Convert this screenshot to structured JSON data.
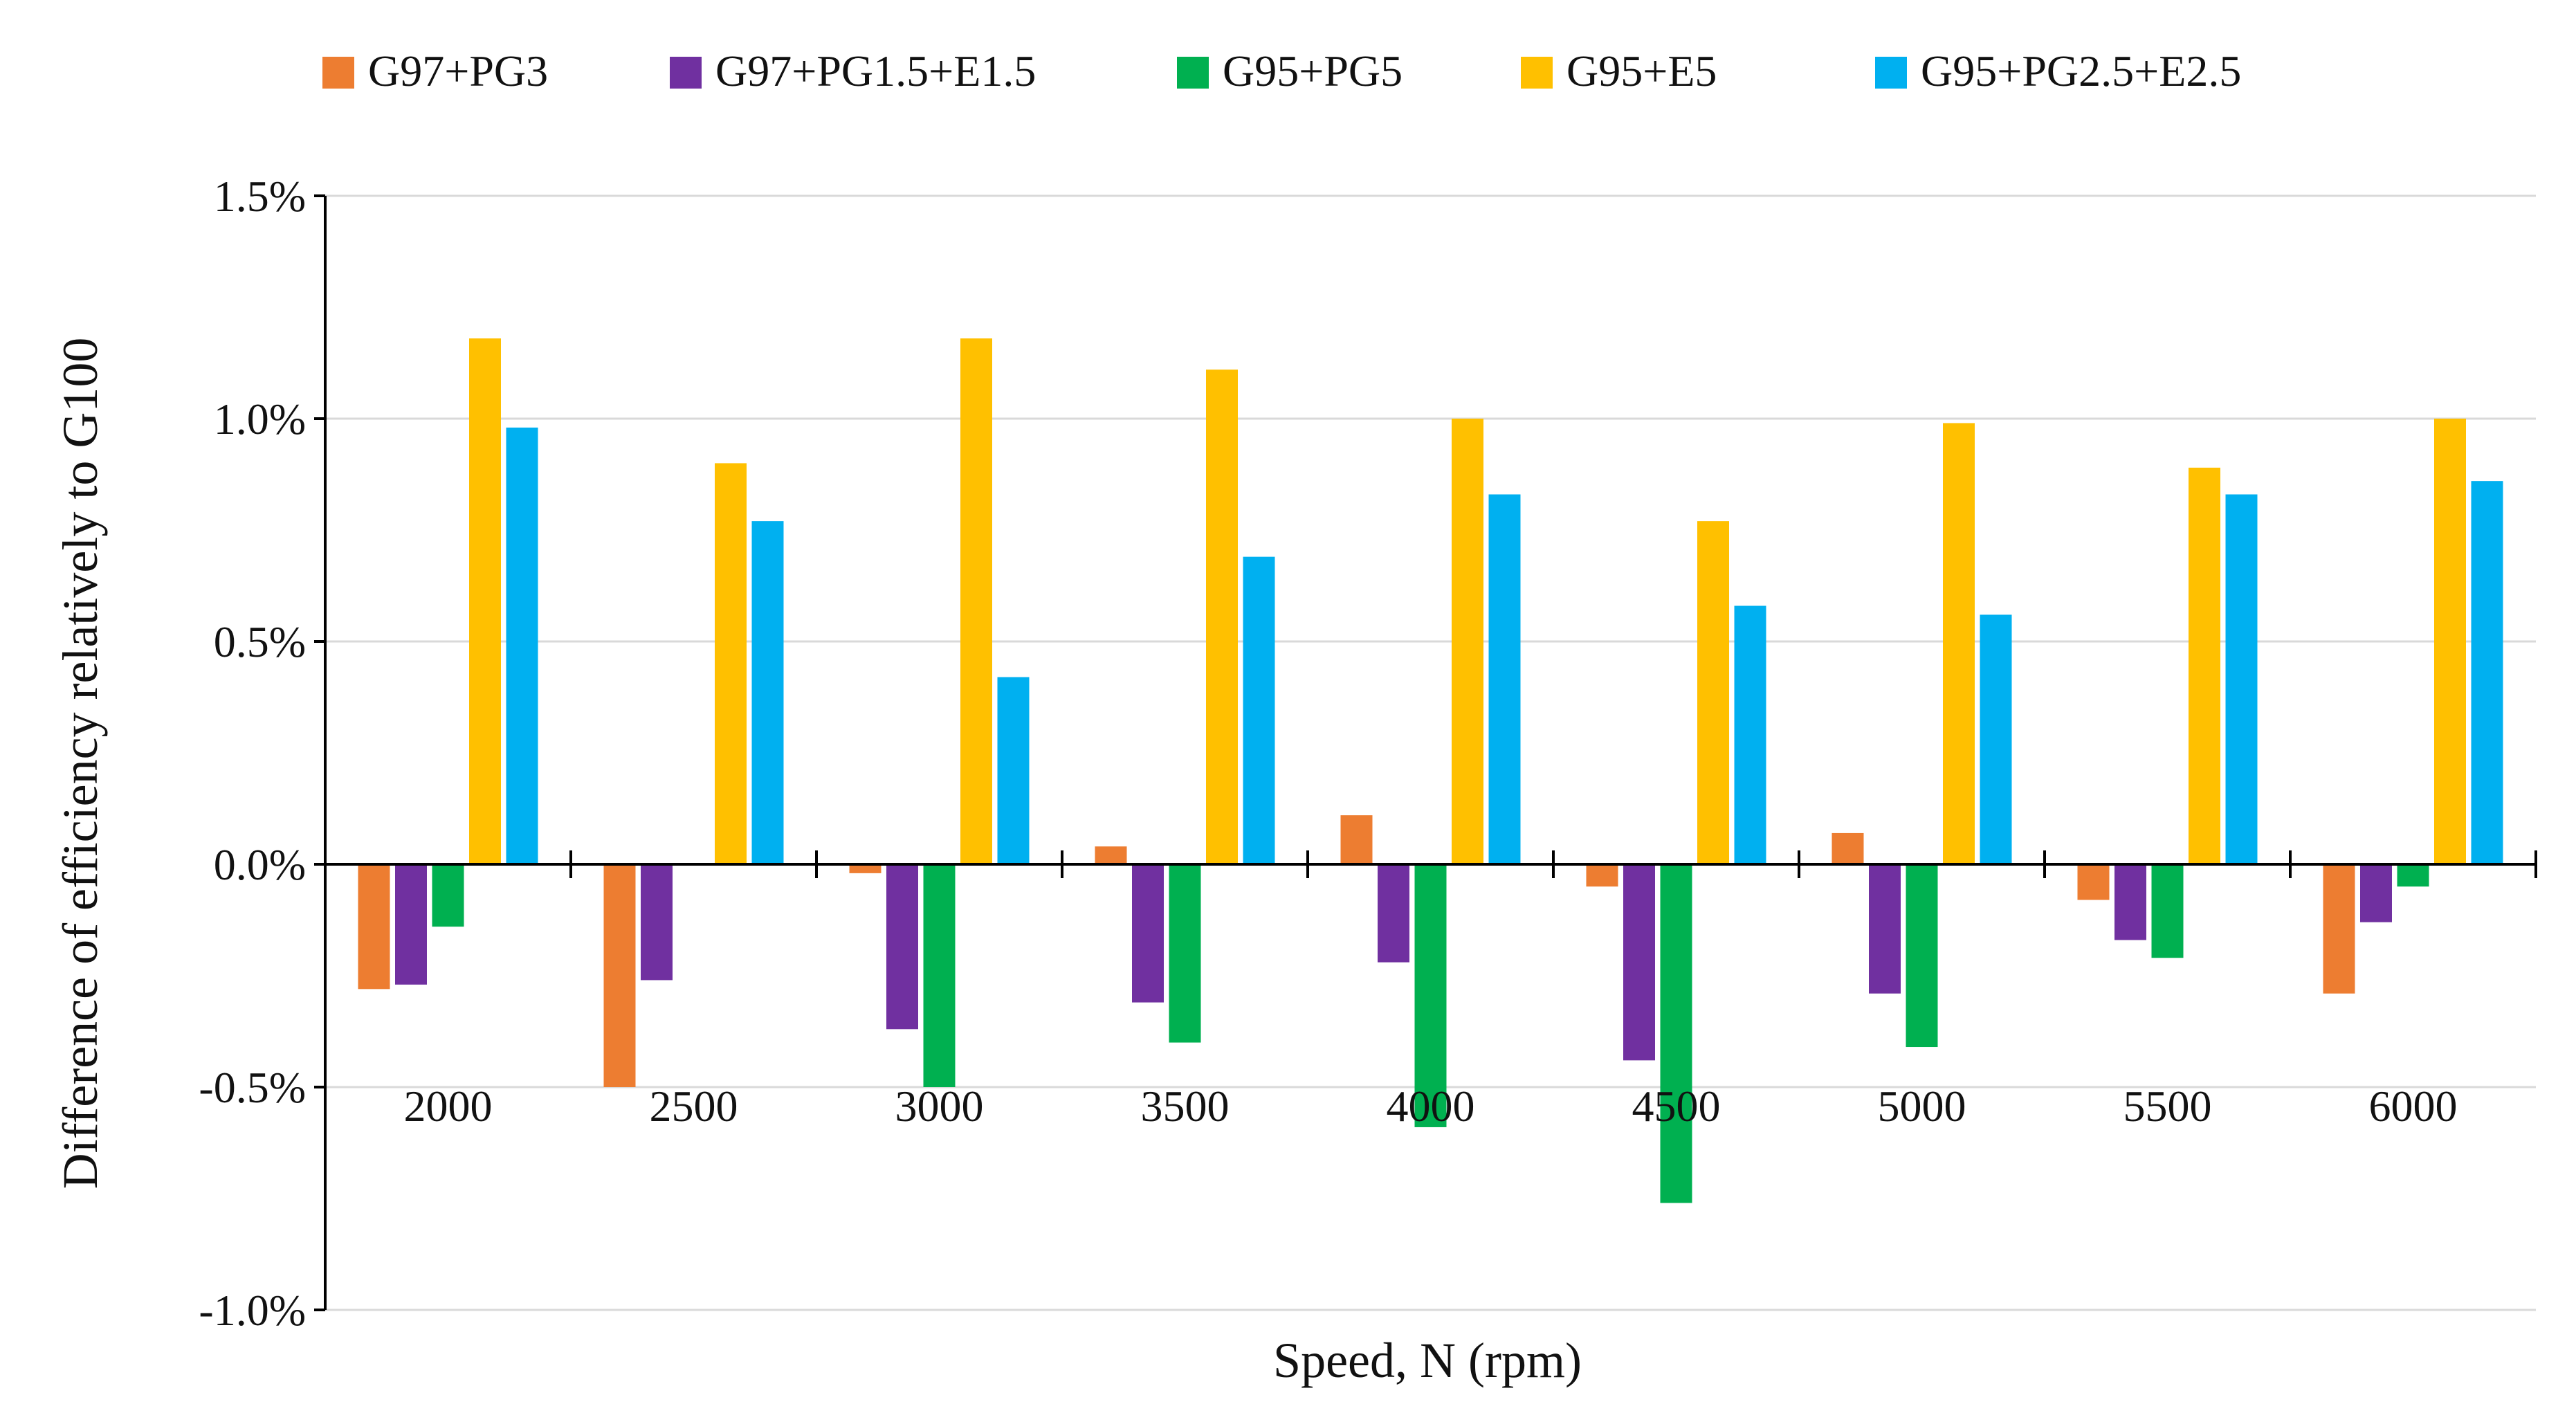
{
  "chart_data": {
    "type": "bar",
    "title": "",
    "xlabel": "Speed, N (rpm)",
    "ylabel": "Difference of efficiency relatively to G100",
    "categories": [
      "2000",
      "2500",
      "3000",
      "3500",
      "4000",
      "4500",
      "5000",
      "5500",
      "6000"
    ],
    "y_ticks": [
      "-1.0%",
      "-0.5%",
      "0.0%",
      "0.5%",
      "1.0%",
      "1.5%"
    ],
    "ylim": [
      -0.01,
      0.015
    ],
    "grid": true,
    "legend_position": "top",
    "series": [
      {
        "name": "G97+PG3",
        "color": "#ED7D31",
        "values": [
          -0.0028,
          -0.005,
          -0.0002,
          0.0004,
          0.0011,
          -0.0005,
          0.0007,
          -0.0008,
          -0.0029
        ]
      },
      {
        "name": "G97+PG1.5+E1.5",
        "color": "#7030A0",
        "values": [
          -0.0027,
          -0.0026,
          -0.0037,
          -0.0031,
          -0.0022,
          -0.0044,
          -0.0029,
          -0.0017,
          -0.0013
        ]
      },
      {
        "name": "G95+PG5",
        "color": "#00B050",
        "values": [
          -0.0014,
          0.0,
          -0.005,
          -0.004,
          -0.0059,
          -0.0076,
          -0.0041,
          -0.0021,
          -0.0005
        ]
      },
      {
        "name": "G95+E5",
        "color": "#FFC000",
        "values": [
          0.0118,
          0.009,
          0.0118,
          0.0111,
          0.01,
          0.0077,
          0.0099,
          0.0089,
          0.01
        ]
      },
      {
        "name": "G95+PG2.5+E2.5",
        "color": "#00B0F0",
        "values": [
          0.0098,
          0.0077,
          0.0042,
          0.0069,
          0.0083,
          0.0058,
          0.0056,
          0.0083,
          0.0086
        ]
      }
    ]
  }
}
